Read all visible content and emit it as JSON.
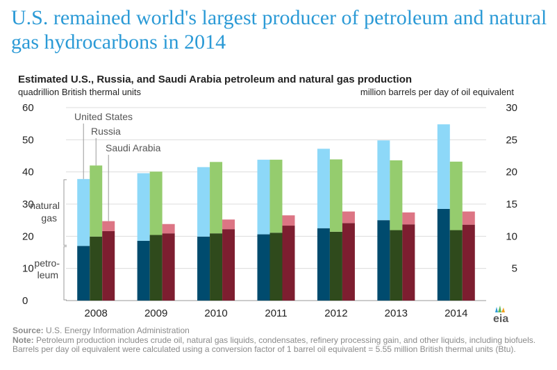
{
  "headline": "U.S. remained world's largest producer of petroleum and natural gas hydrocarbons in 2014",
  "chart_title": "Estimated U.S., Russia,  and Saudi Arabia petroleum and natural gas production",
  "left_unit": "quadrillion  British thermal units",
  "right_unit": "million  barrels  per day of oil equivalent",
  "source_label": "Source:",
  "source_text": "U.S. Energy Information Administration",
  "note_label": "Note:",
  "note_text": "Petroleum production includes crude oil, natural gas liquids, condensates, refinery processing gain, and other liquids, including biofuels. Barrels per day oil equivalent were calculated using a conversion factor of 1 barrel oil equivalent = 5.55 million British thermal units (Btu).",
  "logo_text": "eia",
  "colors": {
    "us_petroleum": "#004b6e",
    "us_gas": "#8dd8f8",
    "russia_petroleum": "#2f4a1c",
    "russia_gas": "#95cc6e",
    "saudi_petroleum": "#7d1e30",
    "saudi_gas": "#dc7584",
    "headline": "#2b9ad6"
  },
  "chart_data": {
    "type": "bar",
    "stacked": true,
    "categories": [
      "2008",
      "2009",
      "2010",
      "2011",
      "2012",
      "2013",
      "2014"
    ],
    "ylim": [
      0,
      60
    ],
    "yticks": [
      0,
      10,
      20,
      30,
      40,
      50,
      60
    ],
    "y2lim": [
      0,
      30
    ],
    "y2ticks": [
      5,
      10,
      15,
      20,
      25,
      30
    ],
    "grid": true,
    "series": [
      {
        "name": "United States",
        "petroleum": [
          17.0,
          18.6,
          19.9,
          20.6,
          22.5,
          25.0,
          28.5
        ],
        "natural_gas": [
          20.8,
          21.0,
          21.6,
          23.2,
          24.7,
          24.8,
          26.3
        ]
      },
      {
        "name": "Russia",
        "petroleum": [
          19.9,
          20.4,
          20.9,
          21.1,
          21.4,
          21.9,
          21.9
        ],
        "natural_gas": [
          22.1,
          19.7,
          22.2,
          22.7,
          22.5,
          21.7,
          21.3
        ]
      },
      {
        "name": "Saudi Arabia",
        "petroleum": [
          21.6,
          20.9,
          22.2,
          23.3,
          24.1,
          23.7,
          23.6
        ],
        "natural_gas": [
          3.1,
          2.9,
          3.0,
          3.2,
          3.6,
          3.7,
          4.1
        ]
      }
    ],
    "annotations": {
      "segment_petroleum": [
        "petro-",
        "leum"
      ],
      "segment_gas": [
        "natural",
        "gas"
      ]
    }
  }
}
